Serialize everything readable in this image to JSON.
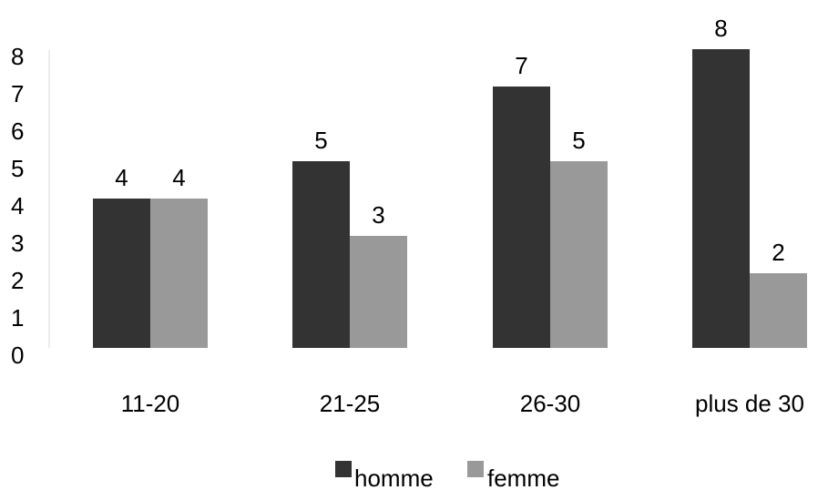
{
  "chart_data": {
    "type": "bar",
    "categories": [
      "11-20",
      "21-25",
      "26-30",
      "plus de 30"
    ],
    "series": [
      {
        "name": "homme",
        "values": [
          4,
          5,
          7,
          8
        ],
        "color": "#333333"
      },
      {
        "name": "femme",
        "values": [
          4,
          3,
          5,
          2
        ],
        "color": "#999999"
      }
    ],
    "ylim": [
      0,
      8
    ],
    "y_ticks": [
      0,
      1,
      2,
      3,
      4,
      5,
      6,
      7,
      8
    ],
    "grid": false,
    "data_labels": true,
    "legend": {
      "position": "bottom"
    }
  }
}
